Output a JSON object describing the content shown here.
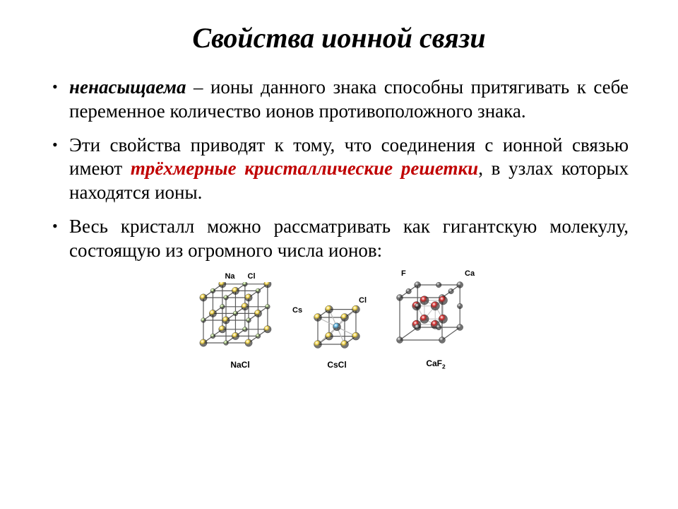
{
  "title": "Свойства ионной связи",
  "bullets": [
    {
      "lead": "ненасыщаема",
      "rest": " – ионы данного знака способны притягивать к себе переменное количество ионов противоположного знака."
    },
    {
      "pre": "Эти свойства приводят к тому, что соединения с ионной связью имеют ",
      "em": "трёхмерные кристаллические решетки",
      "post": ", в узлах которых находятся ионы."
    },
    {
      "text": "Весь кристалл можно рассматривать как гигантскую молекулу, состоящую из огромного числа ионов:"
    }
  ],
  "lattices": {
    "nacl": {
      "label": "NaCl",
      "top_labels": [
        "Na",
        "Cl"
      ],
      "colors": {
        "na": "#f7d94c",
        "cl": "#b8d98e",
        "edge": "#5a5a5a"
      },
      "size": 112
    },
    "cscl": {
      "label": "CsCl",
      "side_labels": {
        "cs": "Cs",
        "cl": "Cl"
      },
      "colors": {
        "cs": "#f7d94c",
        "cl": "#5fb8e6",
        "edge": "#5a5a5a"
      },
      "size": 72
    },
    "caf2": {
      "label_html": "CaF<sub>2</sub>",
      "side_labels": {
        "f": "F",
        "ca": "Ca"
      },
      "colors": {
        "ca": "#d62c2c",
        "f": "#8a8a8a",
        "edge": "#5a5a5a"
      },
      "size": 116
    }
  }
}
